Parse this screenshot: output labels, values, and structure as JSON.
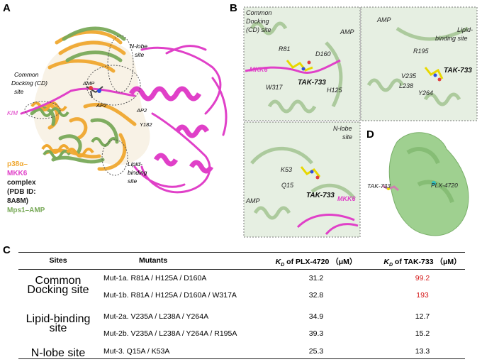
{
  "panels": {
    "A": {
      "letter": "A",
      "labels": {
        "n_lobe": "N-lobe site",
        "cd_site": "Common Docking (CD) site",
        "amp": "AMP",
        "ap2_left": "AP2",
        "ap2_right": "AP2",
        "y182": "Y182",
        "kim": "KIM",
        "lipid": "Lipid-binding site"
      },
      "legend": {
        "p38a": "p38α–",
        "mkk6": "MKK6",
        "complex": "complex (PDB ID: 8A8M)",
        "mps1": "Mps1–AMP"
      }
    },
    "B": {
      "letter": "B",
      "cd_box": {
        "title": "Common Docking (CD) site",
        "amp": "AMP",
        "r81": "R81",
        "d160": "D160",
        "mkk6": "MKK6",
        "w317": "W317",
        "tak": "TAK-733",
        "h125": "H125"
      },
      "lipid_box": {
        "title": "Lipid-binding site",
        "amp": "AMP",
        "r195": "R195",
        "tak": "TAK-733",
        "v235": "V235",
        "l238": "L238",
        "y264": "Y264"
      },
      "nlobe_box": {
        "title": "N-lobe site",
        "k53": "K53",
        "q15": "Q15",
        "tak": "TAK-733",
        "amp": "AMP",
        "mkk6": "MKK6"
      }
    },
    "C": {
      "letter": "C"
    },
    "D": {
      "letter": "D",
      "tak": "TAK-733",
      "plx": "PLX-4720"
    }
  },
  "table": {
    "headers": {
      "sites": "Sites",
      "mutants": "Mutants",
      "kd1": "K",
      "kd1_sub": "D",
      "kd1_rest": " of PLX-4720 （μM）",
      "kd2": "K",
      "kd2_sub": "D",
      "kd2_rest": " of TAK-733 （μM）"
    },
    "rows": [
      {
        "site": "Common\nDocking site",
        "mutant": "Mut-1a. R81A / H125A / D160A",
        "kd_plx": "31.2",
        "kd_tak": "99.2",
        "highlight": true
      },
      {
        "site": "",
        "mutant": "Mut-1b. R81A / H125A / D160A / W317A",
        "kd_plx": "32.8",
        "kd_tak": "193",
        "highlight": true
      },
      {
        "site": "Lipid-binding\nsite",
        "mutant": "Mut-2a. V235A / L238A / Y264A",
        "kd_plx": "34.9",
        "kd_tak": "12.7",
        "highlight": false
      },
      {
        "site": "",
        "mutant": "Mut-2b. V235A / L238A / Y264A / R195A",
        "kd_plx": "39.3",
        "kd_tak": "15.2",
        "highlight": false
      },
      {
        "site": "N-lobe site",
        "mutant": "Mut-3. Q15A / K53A",
        "kd_plx": "25.3",
        "kd_tak": "13.3",
        "highlight": false
      }
    ],
    "site_labels": {
      "cd_line1": "Common",
      "cd_line2": "Docking site",
      "lipid_line1": "Lipid-binding",
      "lipid_line2": "site",
      "nlobe": "N-lobe site"
    }
  },
  "colors": {
    "p38a": "#f0a830",
    "mkk6": "#e040c8",
    "mps1": "#7aaa5a",
    "surface": "#9fd090",
    "red_value": "#d51b1b"
  }
}
